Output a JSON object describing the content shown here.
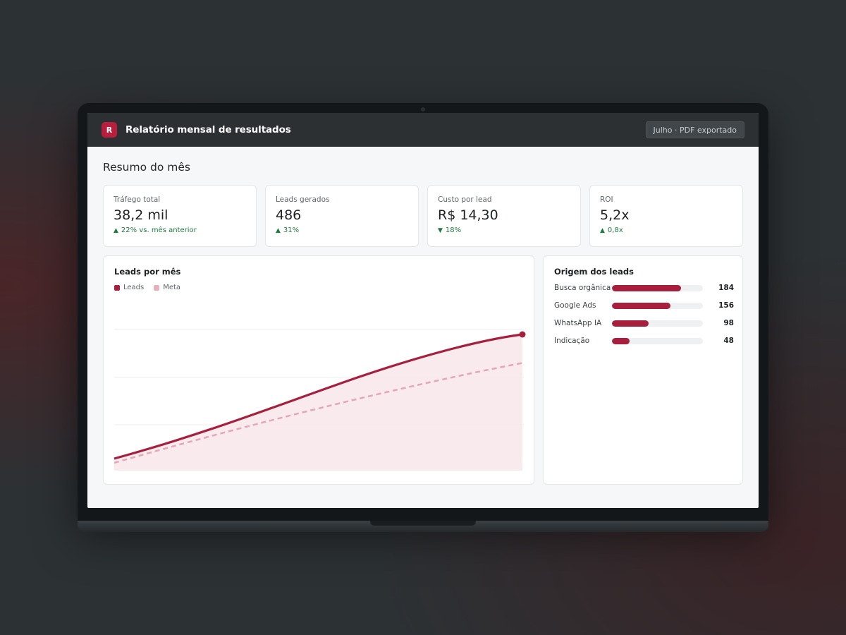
{
  "app": {
    "logo_letter": "R",
    "title": "Relatório mensal de resultados",
    "export_label": "Julho · PDF exportado"
  },
  "page": {
    "heading": "Resumo do mês"
  },
  "kpis": [
    {
      "label": "Tráfego total",
      "value": "38,2 mil",
      "delta": "22% vs. mês anterior",
      "direction": "up"
    },
    {
      "label": "Leads gerados",
      "value": "486",
      "delta": "31%",
      "direction": "up"
    },
    {
      "label": "Custo por lead",
      "value": "R$ 14,30",
      "delta": "18%",
      "direction": "down"
    },
    {
      "label": "ROI",
      "value": "5,2x",
      "delta": "0,8x",
      "direction": "up"
    }
  ],
  "leads_chart": {
    "title": "Leads por mês",
    "legend": [
      {
        "label": "Leads",
        "color": "#a71f3d"
      },
      {
        "label": "Meta",
        "color": "#e8b0bf"
      }
    ]
  },
  "sources": {
    "title": "Origem dos leads",
    "items": [
      {
        "label": "Busca orgânica",
        "value": "184",
        "count": 184
      },
      {
        "label": "Google Ads",
        "value": "156",
        "count": 156
      },
      {
        "label": "WhatsApp IA",
        "value": "98",
        "count": 98
      },
      {
        "label": "Indicação",
        "value": "48",
        "count": 48
      }
    ],
    "scale_max": 243
  },
  "colors": {
    "accent": "#b81f3c",
    "positive": "#1f7a3d",
    "bar_fill": "#a71f3d"
  }
}
